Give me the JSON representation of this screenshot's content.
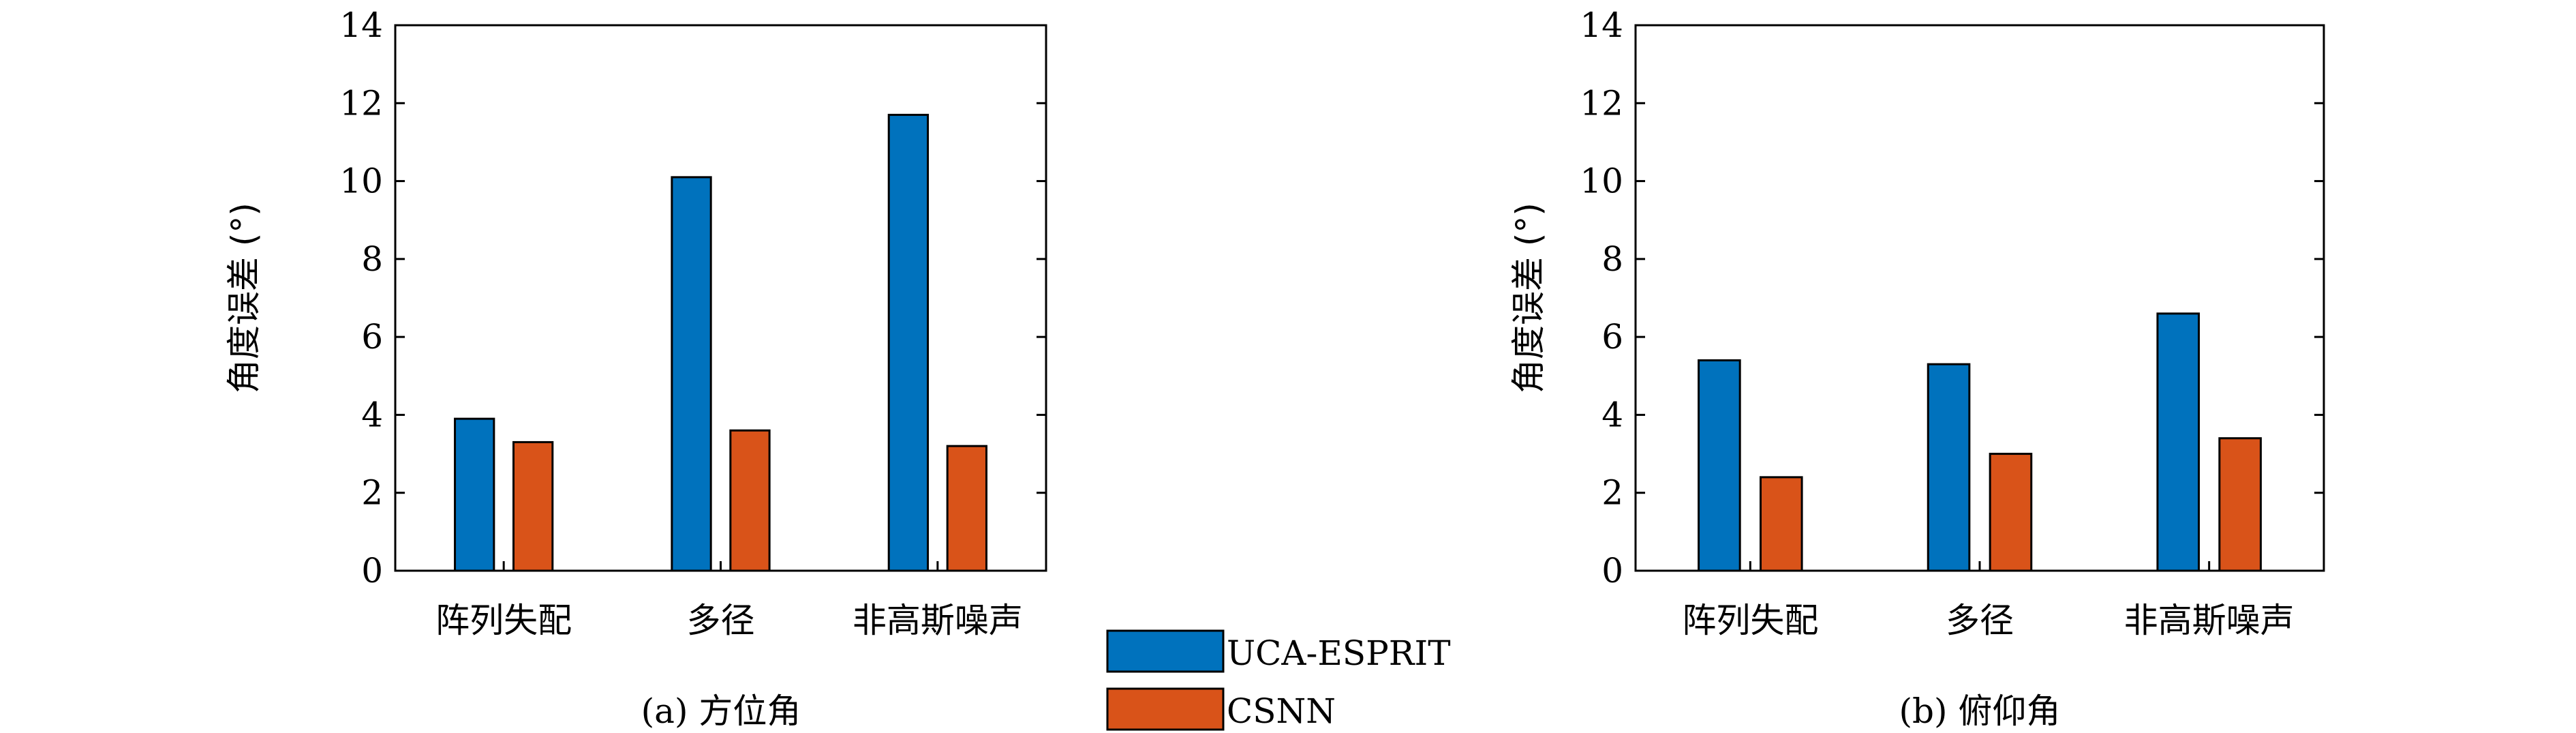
{
  "colors": {
    "series1": "#0072BD",
    "series2": "#D95319",
    "axis": "#000000"
  },
  "legend": {
    "placement": "bottom-center",
    "items": [
      "UCA-ESPRIT",
      "CSNN"
    ]
  },
  "chart_data": [
    {
      "type": "bar",
      "caption": "(a) 方位角",
      "ylabel": "角度误差 (°)",
      "ylim": [
        0,
        14
      ],
      "yticks": [
        "0",
        "2",
        "4",
        "6",
        "8",
        "10",
        "12",
        "14"
      ],
      "categories": [
        "阵列失配",
        "多径",
        "非高斯噪声"
      ],
      "series": [
        {
          "name": "UCA-ESPRIT",
          "values": [
            3.9,
            10.1,
            11.7
          ]
        },
        {
          "name": "CSNN",
          "values": [
            3.3,
            3.6,
            3.2
          ]
        }
      ]
    },
    {
      "type": "bar",
      "caption": "(b) 俯仰角",
      "ylabel": "角度误差 (°)",
      "ylim": [
        0,
        14
      ],
      "yticks": [
        "0",
        "2",
        "4",
        "6",
        "8",
        "10",
        "12",
        "14"
      ],
      "categories": [
        "阵列失配",
        "多径",
        "非高斯噪声"
      ],
      "series": [
        {
          "name": "UCA-ESPRIT",
          "values": [
            5.4,
            5.3,
            6.6
          ]
        },
        {
          "name": "CSNN",
          "values": [
            2.4,
            3.0,
            3.4
          ]
        }
      ]
    }
  ]
}
